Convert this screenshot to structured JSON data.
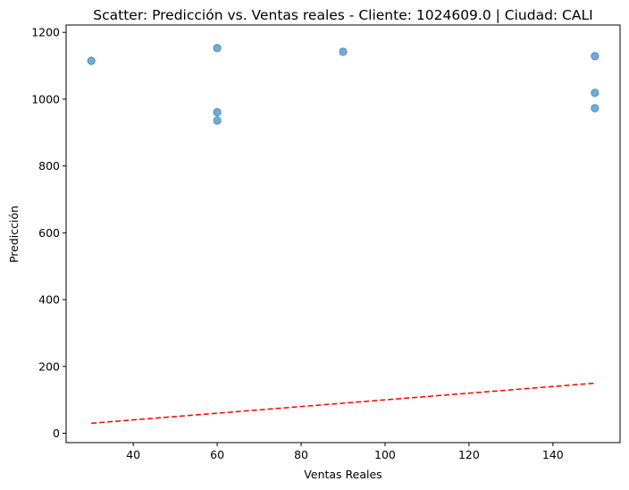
{
  "chart_data": {
    "type": "scatter",
    "title": "Scatter: Predicción vs. Ventas reales - Cliente: 1024609.0 | Ciudad: CALI",
    "xlabel": "Ventas Reales",
    "ylabel": "Predicción",
    "xlim": [
      24,
      156
    ],
    "ylim": [
      -28,
      1222
    ],
    "x_ticks": [
      40,
      60,
      80,
      100,
      120,
      140
    ],
    "y_ticks": [
      0,
      200,
      400,
      600,
      800,
      1000,
      1200
    ],
    "grid": false,
    "points": [
      {
        "x": 30,
        "y": 1115
      },
      {
        "x": 60,
        "y": 1153
      },
      {
        "x": 60,
        "y": 961
      },
      {
        "x": 60,
        "y": 936
      },
      {
        "x": 90,
        "y": 1142
      },
      {
        "x": 150,
        "y": 1129
      },
      {
        "x": 150,
        "y": 1019
      },
      {
        "x": 150,
        "y": 973
      }
    ],
    "reference_line": {
      "x": [
        30,
        150
      ],
      "y": [
        30,
        150
      ],
      "style": "dashed"
    },
    "colors": {
      "points": "#1f77b4",
      "reference_line": "#ff0000"
    }
  }
}
